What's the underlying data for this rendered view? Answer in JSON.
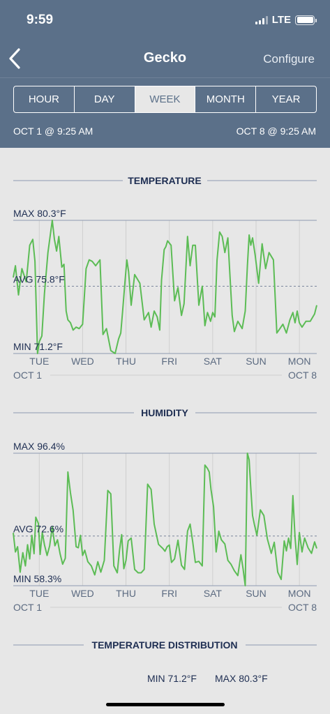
{
  "status": {
    "time": "9:59",
    "network": "LTE"
  },
  "nav": {
    "title": "Gecko",
    "configure_label": "Configure"
  },
  "tabs": [
    {
      "label": "HOUR",
      "active": false
    },
    {
      "label": "DAY",
      "active": false
    },
    {
      "label": "WEEK",
      "active": true
    },
    {
      "label": "MONTH",
      "active": false
    },
    {
      "label": "YEAR",
      "active": false
    }
  ],
  "range": {
    "start": "OCT 1 @ 9:25 AM",
    "end": "OCT 8 @ 9:25 AM"
  },
  "colors": {
    "header": "#5b7089",
    "line": "#5cbc55",
    "title": "#1e2e52"
  },
  "chart_data": [
    {
      "type": "line",
      "title": "TEMPERATURE",
      "max_label": "MAX 80.3°F",
      "avg_label": "AVG 75.8°F",
      "min_label": "MIN 71.2°F",
      "ylim": [
        71.2,
        80.3
      ],
      "avg": 75.8,
      "xlim": [
        0,
        7
      ],
      "day_labels": [
        "TUE",
        "WED",
        "THU",
        "FRI",
        "SAT",
        "SUN",
        "MON"
      ],
      "day_positions": [
        0.6,
        1.6,
        2.6,
        3.6,
        4.6,
        5.6,
        6.6
      ],
      "start_label": "OCT 1",
      "end_label": "OCT 8",
      "series": [
        {
          "x": [
            0,
            0.05,
            0.12,
            0.2,
            0.3,
            0.38,
            0.45,
            0.5,
            0.56,
            0.6,
            0.66,
            0.72,
            0.8,
            0.9,
            0.95,
            1.0,
            1.05,
            1.12,
            1.17,
            1.22,
            1.26,
            1.32,
            1.38,
            1.45,
            1.52,
            1.6,
            1.68,
            1.75,
            1.82,
            1.9,
            2.0,
            2.07,
            2.15,
            2.25,
            2.35,
            2.43,
            2.48,
            2.52,
            2.58,
            2.62,
            2.66,
            2.72,
            2.8,
            2.92,
            3.02,
            3.12,
            3.18,
            3.25,
            3.32,
            3.38,
            3.42,
            3.48,
            3.52,
            3.56,
            3.64,
            3.72,
            3.8,
            3.88,
            3.94,
            4.02,
            4.08,
            4.14,
            4.2,
            4.28,
            4.36,
            4.42,
            4.48,
            4.55,
            4.6,
            4.65,
            4.7,
            4.76,
            4.82,
            4.88,
            4.95,
            5.05,
            5.1,
            5.18,
            5.28,
            5.35,
            5.4,
            5.44,
            5.48,
            5.52,
            5.58,
            5.66,
            5.74,
            5.82,
            5.9,
            6.0,
            6.08,
            6.15,
            6.22,
            6.3,
            6.38,
            6.45,
            6.5,
            6.55,
            6.6,
            6.66,
            6.75,
            6.85,
            6.95,
            7.0
          ],
          "values": [
            76.4,
            77.2,
            75.2,
            77.0,
            76.1,
            78.6,
            79.0,
            77.5,
            71.2,
            72.0,
            72.4,
            75.3,
            78.1,
            80.3,
            79.0,
            78.2,
            79.2,
            77.1,
            77.3,
            74.1,
            73.5,
            73.3,
            72.8,
            73.0,
            72.9,
            73.2,
            77.0,
            77.6,
            77.5,
            77.2,
            77.6,
            72.5,
            72.9,
            71.4,
            71.2,
            72.2,
            72.6,
            74.0,
            76.2,
            77.6,
            76.8,
            74.5,
            76.6,
            76.0,
            73.5,
            74.0,
            73.0,
            74.1,
            73.7,
            72.8,
            76.2,
            78.3,
            78.5,
            78.9,
            78.6,
            74.8,
            75.7,
            73.8,
            74.6,
            79.2,
            77.2,
            78.6,
            78.6,
            74.5,
            75.8,
            73.1,
            74.0,
            73.4,
            74.0,
            73.7,
            77.6,
            79.5,
            79.2,
            78.1,
            79.1,
            73.8,
            72.7,
            73.4,
            72.9,
            74.1,
            77.2,
            79.3,
            78.6,
            79.1,
            77.9,
            76.0,
            78.7,
            77.0,
            78.1,
            77.6,
            72.6,
            72.9,
            73.2,
            72.6,
            73.5,
            74.0,
            73.3,
            74.1,
            73.3,
            73.0,
            73.4,
            73.4,
            73.9,
            74.5
          ]
        }
      ]
    },
    {
      "type": "line",
      "title": "HUMIDITY",
      "max_label": "MAX 96.4%",
      "avg_label": "AVG 72.6%",
      "min_label": "MIN 58.3%",
      "ylim": [
        58.3,
        96.4
      ],
      "avg": 72.6,
      "xlim": [
        0,
        7
      ],
      "day_labels": [
        "TUE",
        "WED",
        "THU",
        "FRI",
        "SAT",
        "SUN",
        "MON"
      ],
      "day_positions": [
        0.6,
        1.6,
        2.6,
        3.6,
        4.6,
        5.6,
        6.6
      ],
      "start_label": "OCT 1",
      "end_label": "OCT 8",
      "series": [
        {
          "x": [
            0,
            0.05,
            0.1,
            0.16,
            0.22,
            0.28,
            0.33,
            0.38,
            0.43,
            0.48,
            0.52,
            0.58,
            0.62,
            0.67,
            0.72,
            0.78,
            0.84,
            0.9,
            0.96,
            1.02,
            1.08,
            1.14,
            1.2,
            1.26,
            1.32,
            1.38,
            1.45,
            1.5,
            1.55,
            1.6,
            1.65,
            1.72,
            1.8,
            1.88,
            1.95,
            2.02,
            2.1,
            2.18,
            2.25,
            2.32,
            2.4,
            2.45,
            2.5,
            2.55,
            2.6,
            2.65,
            2.72,
            2.8,
            2.88,
            2.95,
            3.02,
            3.1,
            3.18,
            3.25,
            3.35,
            3.45,
            3.5,
            3.55,
            3.6,
            3.65,
            3.72,
            3.8,
            3.88,
            3.95,
            4.02,
            4.08,
            4.14,
            4.2,
            4.28,
            4.36,
            4.42,
            4.48,
            4.52,
            4.56,
            4.62,
            4.68,
            4.74,
            4.8,
            4.88,
            4.95,
            5.02,
            5.1,
            5.18,
            5.25,
            5.3,
            5.35,
            5.4,
            5.44,
            5.48,
            5.52,
            5.56,
            5.62,
            5.7,
            5.78,
            5.86,
            5.95,
            6.02,
            6.1,
            6.18,
            6.25,
            6.3,
            6.35,
            6.4,
            6.45,
            6.5,
            6.55,
            6.6,
            6.66,
            6.72,
            6.8,
            6.88,
            6.95,
            7.0
          ],
          "values": [
            73.5,
            68.0,
            69.5,
            62.2,
            67.8,
            64.0,
            70.1,
            66.0,
            72.8,
            67.5,
            78.0,
            76.2,
            67.3,
            73.6,
            70.1,
            67.0,
            69.8,
            75.2,
            69.8,
            71.5,
            67.5,
            64.5,
            66.2,
            91.0,
            85.0,
            80.0,
            69.5,
            69.2,
            72.8,
            67.0,
            68.5,
            65.2,
            64.0,
            61.4,
            65.2,
            62.2,
            65.6,
            85.7,
            84.7,
            64.0,
            62.0,
            68.5,
            73.0,
            63.2,
            65.6,
            71.2,
            72.0,
            63.0,
            62.0,
            62.0,
            63.0,
            87.5,
            86.0,
            76.0,
            70.2,
            69.0,
            68.2,
            69.5,
            70.0,
            65.0,
            66.0,
            71.4,
            64.2,
            63.0,
            74.0,
            76.0,
            70.8,
            65.0,
            65.3,
            64.0,
            93.0,
            92.0,
            91.0,
            86.0,
            81.0,
            68.0,
            74.0,
            71.5,
            70.3,
            65.6,
            64.5,
            62.6,
            61.2,
            67.2,
            63.2,
            58.3,
            96.4,
            94.5,
            86.2,
            78.5,
            76.0,
            72.8,
            80.1,
            78.5,
            71.8,
            67.6,
            70.8,
            62.2,
            60.1,
            71.2,
            68.3,
            72.0,
            69.0,
            84.2,
            72.2,
            64.4,
            73.6,
            68.0,
            72.0,
            69.2,
            67.6,
            70.9,
            69.0
          ]
        }
      ]
    }
  ],
  "distribution": {
    "title": "TEMPERATURE DISTRIBUTION",
    "min_label": "MIN 71.2°F",
    "max_label": "MAX 80.3°F"
  }
}
